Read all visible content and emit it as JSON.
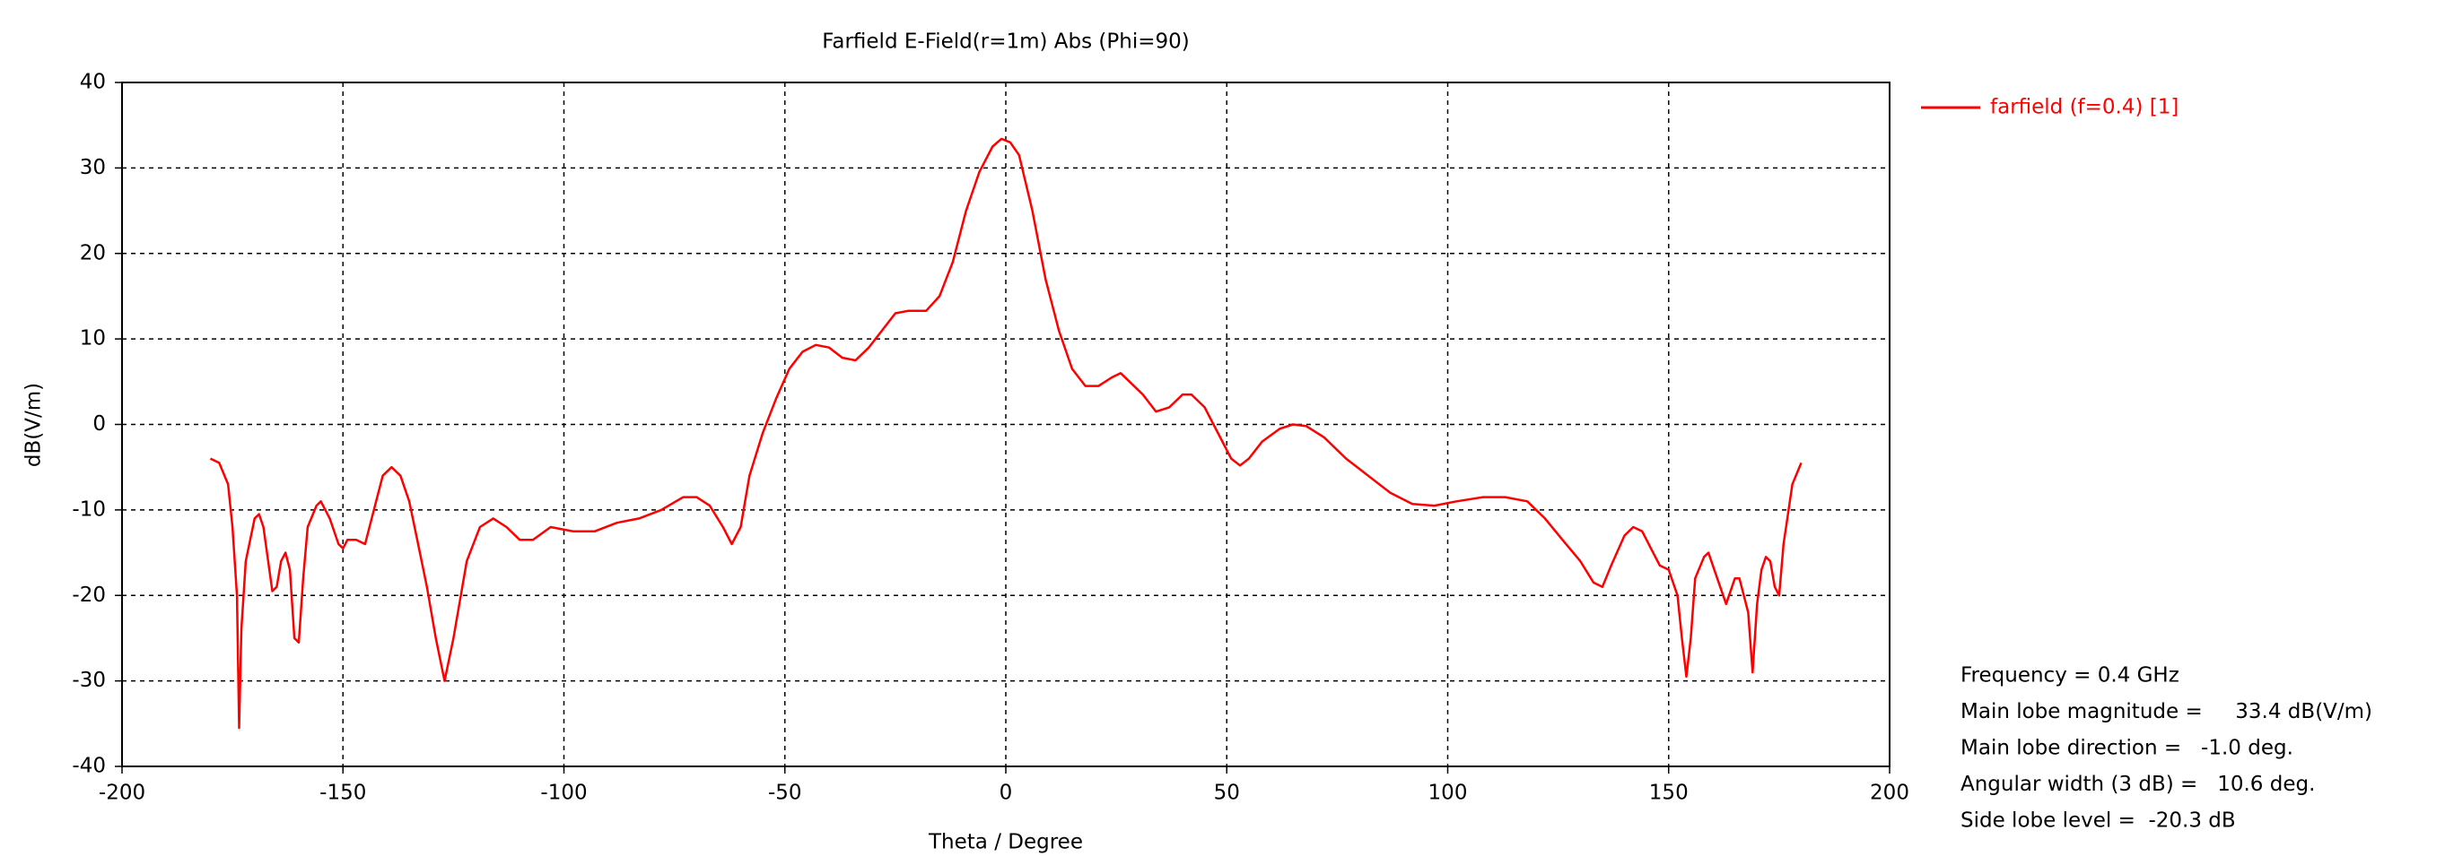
{
  "chart_data": {
    "type": "line",
    "title": "Farfield E-Field(r=1m) Abs (Phi=90)",
    "x_label": "Theta / Degree",
    "y_label": "dB(V/m)",
    "xlim": [
      -200,
      200
    ],
    "ylim": [
      -40,
      40
    ],
    "xticks": [
      -200,
      -150,
      -100,
      -50,
      0,
      50,
      100,
      150,
      200
    ],
    "yticks": [
      -40,
      -30,
      -20,
      -10,
      0,
      10,
      20,
      30,
      40
    ],
    "grid": true,
    "legend_position": "right",
    "series": [
      {
        "name": "farfield (f=0.4) [1]",
        "color": "#ff0000",
        "x": [
          -180,
          -178,
          -176,
          -175,
          -174,
          -173.5,
          -173,
          -172,
          -170,
          -169,
          -168,
          -166,
          -165,
          -164,
          -163,
          -162,
          -161,
          -160,
          -159,
          -158,
          -156,
          -155,
          -153,
          -151,
          -150,
          -149,
          -147,
          -145,
          -143,
          -141,
          -139,
          -137,
          -135,
          -133,
          -131,
          -129,
          -127,
          -125,
          -122,
          -119,
          -116,
          -113,
          -110,
          -107,
          -103,
          -98,
          -93,
          -88,
          -83,
          -78,
          -73,
          -70,
          -67,
          -64,
          -62,
          -60,
          -58,
          -55,
          -52,
          -49,
          -46,
          -43,
          -40,
          -37,
          -34,
          -31,
          -28,
          -25,
          -22,
          -18,
          -15,
          -12,
          -9,
          -6,
          -3,
          -1,
          1,
          3,
          6,
          9,
          12,
          15,
          18,
          21,
          24,
          26,
          28,
          31,
          34,
          37,
          40,
          42,
          45,
          48,
          51,
          53,
          55,
          58,
          62,
          65,
          68,
          72,
          77,
          82,
          87,
          92,
          97,
          102,
          108,
          113,
          118,
          122,
          126,
          130,
          133,
          135,
          137,
          140,
          142,
          144,
          146,
          148,
          150,
          152,
          153,
          154,
          155,
          156,
          158,
          159,
          161,
          163,
          165,
          166,
          168,
          169,
          170,
          171,
          172,
          173,
          174,
          175,
          176,
          178,
          180
        ],
        "values": [
          -4,
          -4.5,
          -7,
          -12,
          -20,
          -35.5,
          -24,
          -16,
          -11,
          -10.5,
          -12,
          -19.5,
          -19,
          -16,
          -15,
          -17,
          -25,
          -25.5,
          -18,
          -12,
          -9.5,
          -9,
          -11,
          -14,
          -14.5,
          -13.5,
          -13.5,
          -14,
          -10,
          -6,
          -5,
          -6,
          -9,
          -14,
          -19,
          -25,
          -30,
          -25,
          -16,
          -12,
          -11,
          -12,
          -13.5,
          -13.5,
          -12,
          -12.5,
          -12.5,
          -11.5,
          -11,
          -10,
          -8.5,
          -8.5,
          -9.5,
          -12,
          -14,
          -12,
          -6,
          -1,
          3,
          6.5,
          8.5,
          9.3,
          9,
          7.8,
          7.5,
          9,
          11,
          13,
          13.3,
          13.3,
          15,
          19,
          25,
          29.5,
          32.5,
          33.4,
          33,
          31.5,
          25,
          17,
          11,
          6.5,
          4.5,
          4.5,
          5.5,
          6,
          5,
          3.5,
          1.5,
          2,
          3.5,
          3.5,
          2,
          -1,
          -4,
          -4.8,
          -4,
          -2,
          -0.5,
          0,
          -0.2,
          -1.5,
          -4,
          -6,
          -8,
          -9.3,
          -9.5,
          -9,
          -8.5,
          -8.5,
          -9,
          -11,
          -13.5,
          -16,
          -18.5,
          -19,
          -16.5,
          -13,
          -12,
          -12.5,
          -14.5,
          -16.5,
          -17,
          -20,
          -25,
          -29.5,
          -25,
          -18,
          -15.5,
          -15,
          -18,
          -21,
          -18,
          -18,
          -22,
          -29,
          -21,
          -17,
          -15.5,
          -16,
          -19,
          -20,
          -14,
          -7,
          -4.5
        ]
      }
    ],
    "annotations": [
      "Frequency = 0.4 GHz",
      "Main lobe magnitude =     33.4 dB(V/m)",
      "Main lobe direction =   -1.0 deg.",
      "Angular width (3 dB) =   10.6 deg.",
      "Side lobe level =  -20.3 dB"
    ]
  }
}
